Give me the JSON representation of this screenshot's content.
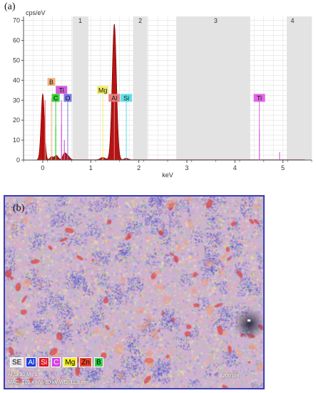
{
  "panel_a_label": "(a)",
  "panel_b_label": "(b)",
  "chart_data": {
    "type": "line",
    "title": "",
    "xlabel": "keV",
    "ylabel": "cps/eV",
    "xlim": [
      -0.4,
      5.6
    ],
    "ylim": [
      0,
      72
    ],
    "x_ticks": [
      0,
      1,
      2,
      3,
      4,
      5
    ],
    "y_ticks": [
      0,
      10,
      20,
      30,
      40,
      50,
      60,
      70
    ],
    "grid": true,
    "shaded_bands": [
      {
        "from": 0.62,
        "to": 0.95
      },
      {
        "from": 1.88,
        "to": 2.18
      },
      {
        "from": 2.78,
        "to": 4.32
      },
      {
        "from": 5.08,
        "to": 5.6
      }
    ],
    "band_labels": [
      {
        "label": "1",
        "x": 0.78
      },
      {
        "label": "2",
        "x": 2.03
      },
      {
        "label": "3",
        "x": 3.6
      },
      {
        "label": "4",
        "x": 5.2
      }
    ],
    "spectrum_peaks": [
      {
        "x": 0.0,
        "y": 33,
        "w": 0.035
      },
      {
        "x": 0.18,
        "y": 1.5,
        "w": 0.03
      },
      {
        "x": 0.28,
        "y": 2.2,
        "w": 0.04
      },
      {
        "x": 0.45,
        "y": 3.0,
        "w": 0.035
      },
      {
        "x": 0.52,
        "y": 2.0,
        "w": 0.04
      },
      {
        "x": 1.25,
        "y": 1.2,
        "w": 0.05
      },
      {
        "x": 1.49,
        "y": 68,
        "w": 0.045
      },
      {
        "x": 1.74,
        "y": 0.8,
        "w": 0.04
      }
    ],
    "element_lines": [
      {
        "element": "B",
        "x": 0.18,
        "y": 31,
        "label_y": 39,
        "color": "#f3b37e"
      },
      {
        "element": "Ti",
        "x": 0.39,
        "y": 30,
        "label_y": 35,
        "color": "#d45cd8"
      },
      {
        "element": "C",
        "x": 0.27,
        "y": 31,
        "label_y": 31,
        "color": "#37d23a"
      },
      {
        "element": "O",
        "x": 0.52,
        "y": 31,
        "label_y": 31,
        "color": "#7a7ae8"
      },
      {
        "element": "Mg",
        "x": 1.25,
        "y": 34,
        "label_y": 35,
        "color": "#f0ef6a"
      },
      {
        "element": "Al",
        "x": 1.49,
        "y": 31,
        "label_y": 31,
        "color": "#e87f7f"
      },
      {
        "element": "Si",
        "x": 1.74,
        "y": 31,
        "label_y": 31,
        "color": "#5fe0ea"
      },
      {
        "element": "Ti",
        "x": 4.51,
        "y": 31,
        "label_y": 31,
        "color": "#e463e8"
      }
    ],
    "extra_lines": [
      {
        "x": 0.0,
        "y": 33,
        "color": "#c00000"
      },
      {
        "x": 0.05,
        "y": 30,
        "color": "#e87f7f"
      },
      {
        "x": 0.27,
        "y": 17,
        "color": "#37d23a"
      },
      {
        "x": 0.39,
        "y": 18,
        "color": "#d45cd8"
      },
      {
        "x": 0.45,
        "y": 10,
        "color": "#d45cd8"
      },
      {
        "x": 4.51,
        "y": 15,
        "color": "#e463e8"
      },
      {
        "x": 4.93,
        "y": 4,
        "color": "#e463e8"
      }
    ]
  },
  "mapping": {
    "legend": [
      {
        "label": "SE",
        "bg": "#e6e6e6",
        "fg": "#000000"
      },
      {
        "label": "Al",
        "bg": "#1b3fd8",
        "fg": "#ffffff"
      },
      {
        "label": "Si",
        "bg": "#e0162a",
        "fg": "#ffffff"
      },
      {
        "label": "C",
        "bg": "#d23fe0",
        "fg": "#ffffff"
      },
      {
        "label": "Mg",
        "bg": "#f2ee2a",
        "fg": "#000000"
      },
      {
        "label": "Zn",
        "bg": "#e6452a",
        "fg": "#000000"
      },
      {
        "label": "B",
        "bg": "#2fd24a",
        "fg": "#000000"
      }
    ],
    "info_id": "Al Si 10 Mg 1",
    "info_mag": "MAG: 100 x  HV: 20 kV  WD: 11.9 mm",
    "scale": "200 µm"
  }
}
